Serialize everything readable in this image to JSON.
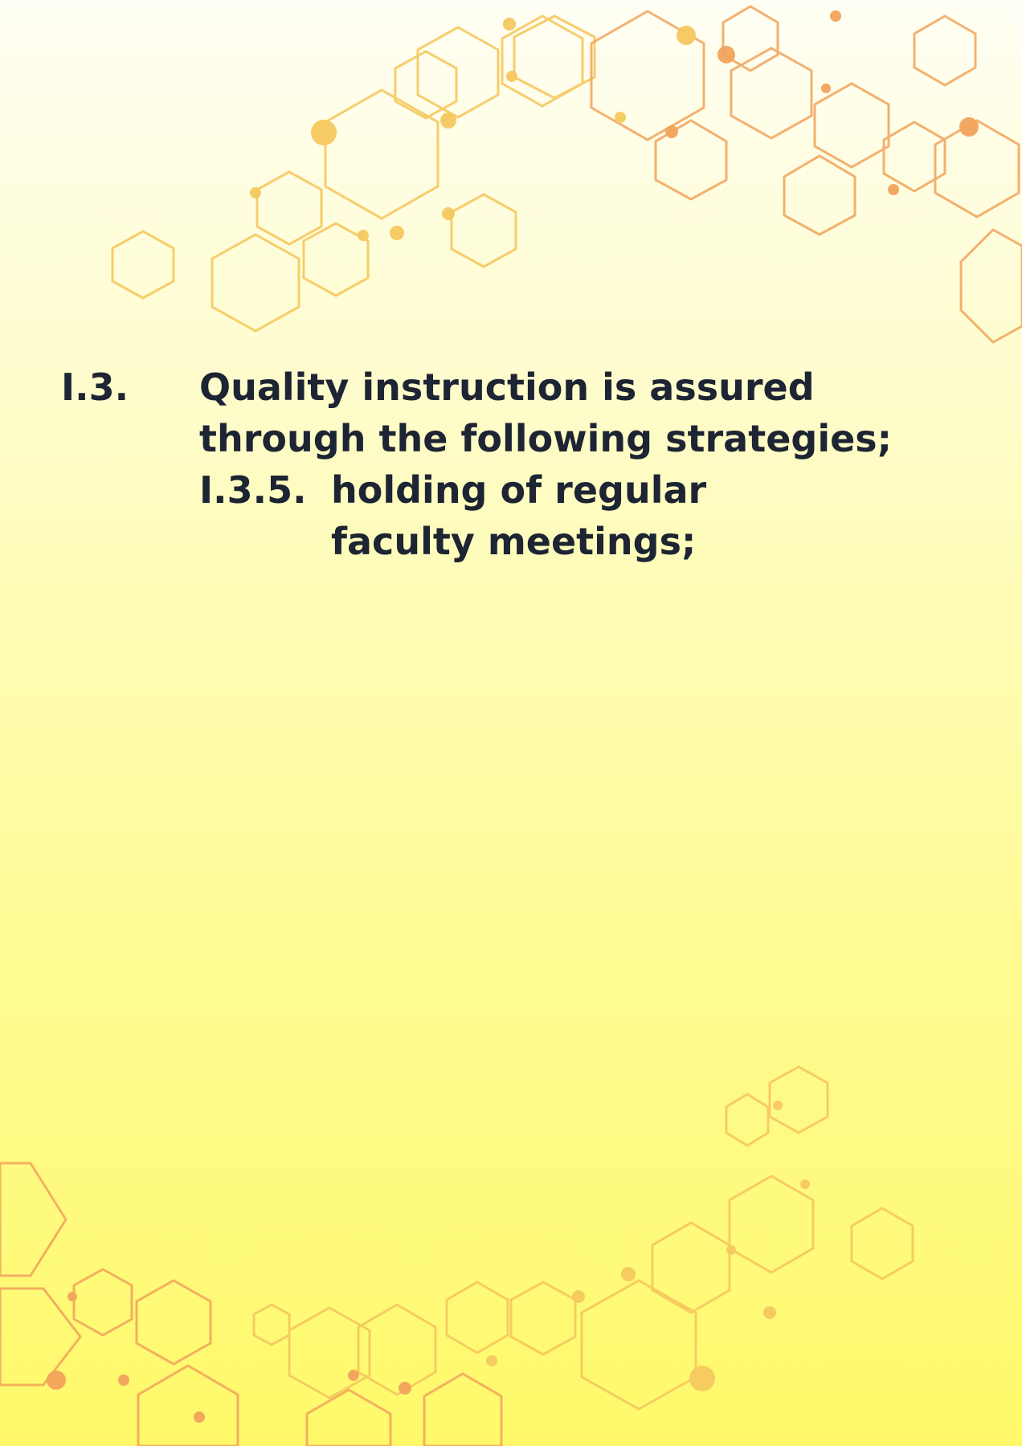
{
  "section": {
    "number": "I.3.",
    "text": "Quality instruction is assured through the following strategies;"
  },
  "subsection": {
    "number": "I.3.5.",
    "text": "holding of regular faculty meetings;"
  },
  "colors": {
    "text": "#1d2433",
    "background_top": "#fffef4",
    "background_bottom": "#fff96a",
    "hex_yellow": "#f6c85f",
    "hex_orange": "#f2a35b"
  },
  "icons": {
    "decoration": "hexagon-network"
  }
}
